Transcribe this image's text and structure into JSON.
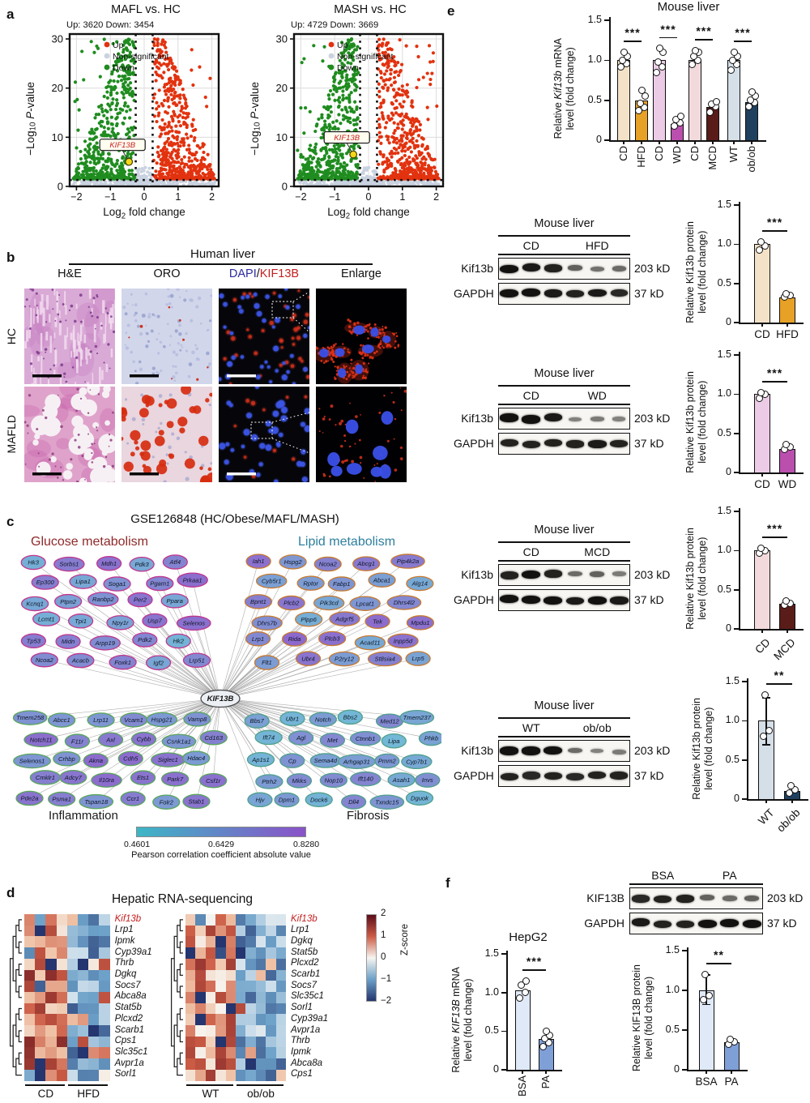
{
  "panel_a": {
    "label": "a",
    "legend": [
      {
        "label": "Up",
        "color": "#e2320f"
      },
      {
        "label": "Non-significant",
        "color": "#c9d2e0"
      },
      {
        "label": "Down",
        "color": "#1f8c1f"
      }
    ],
    "gene_label": "KIF13B",
    "gene_label_color": "#c41f1f",
    "marker_color": "#f4d818",
    "ylabel": [
      [
        {
          "t": "−Log"
        },
        {
          "t": "10",
          "sub": true
        },
        {
          "t": " "
        },
        {
          "t": "P",
          "i": true
        },
        {
          "t": "-value"
        }
      ]
    ],
    "xlabel": [
      [
        {
          "t": "Log"
        },
        {
          "t": "2",
          "sub": true
        },
        {
          "t": " fold change"
        }
      ]
    ],
    "xticks": [
      "−2",
      "−1",
      "0",
      "1",
      "2"
    ],
    "yticks": [
      "0",
      "10",
      "20",
      "30"
    ]
  },
  "panel_b": {
    "label": "b",
    "header": "Human liver",
    "columns": [
      "H&E",
      "ORO",
      "DAPI/KIF13B",
      "Enlarge"
    ],
    "dapi_parts": {
      "dapi": "DAPI",
      "slash": "/",
      "kif13b": "KIF13B",
      "dapi_color": "#2b2b9e",
      "kif13b_color": "#c41f1f"
    },
    "rows": [
      "HC",
      "MAFLD"
    ]
  },
  "panel_c": {
    "label": "c",
    "title": "GSE126848 (HC/Obese/MAFL/MASH)",
    "hub": "KIF13B",
    "quadrants": [
      {
        "name": "Glucose metabolism",
        "color": "#8f2a2a",
        "border": "#c0368e",
        "genes": [
          "Hk3",
          "Sorbs1",
          "Mdh1",
          "Pdk3",
          "Atf4",
          "Ep300",
          "Lipa1",
          "Soga1",
          "Pgam1",
          "Prkaa1",
          "Kcnq1",
          "Ptpn2",
          "Ranbp2",
          "Per2",
          "Ppara",
          "Lcmt1",
          "Tpi1",
          "Npy1r",
          "Usp7",
          "Selenos",
          "Tp53",
          "Midn",
          "Arpp19",
          "Pdk2",
          "Hk2",
          "Ncoa2",
          "Acacb",
          "Foxk1",
          "Igf2",
          "Lrp51"
        ]
      },
      {
        "name": "Lipid metabolism",
        "color": "#2e7f9e",
        "border": "#c87a2e",
        "genes": [
          "Iah1",
          "Hspg2",
          "Ncoa2",
          "Abcg1",
          "Pip4k2a",
          "Cyb5r1",
          "Rptor",
          "Fabp1",
          "Abca1",
          "Alg14",
          "Bpnt1",
          "Plcb2",
          "Pik3cd",
          "Lpcat1",
          "Dhrs4l2",
          "Dhrs7b",
          "Plpp6",
          "Adgrf5",
          "Tek",
          "Mpdu1",
          "Lrp1",
          "Rida",
          "Plcb3",
          "Acad11",
          "Inpp5d",
          "Flt1",
          "Ubr4",
          "P2ry12",
          "St8sia4",
          "Lrp5"
        ]
      },
      {
        "name": "Inflammation",
        "color": "#1a1a1a",
        "border": "#59a659",
        "genes": [
          "Tmem258",
          "Abcc1",
          "Lrp11",
          "Vcam1",
          "Hspg21",
          "Vamp8",
          "Notch11",
          "F11r",
          "Axl",
          "Cybb",
          "Csnk1a1",
          "Cd163",
          "Selenos1",
          "Crhbp",
          "Akna",
          "Cdh5",
          "Siglec1",
          "Hdac4",
          "Cmklr1",
          "Adcy7",
          "Il10ra",
          "Ets1",
          "Park7",
          "Csf1r",
          "Pde2a",
          "Psma1",
          "Tspan18",
          "Ccr1",
          "Folr2",
          "Stab1"
        ]
      },
      {
        "name": "Fibrosis",
        "color": "#1a1a1a",
        "border": "#4fa08a",
        "genes": [
          "Bbs7",
          "Ubr1",
          "Notch",
          "Bbs2",
          "Med12",
          "Tmem237",
          "Ift74",
          "Agl",
          "Met",
          "Ctnnb1",
          "Lipa",
          "Phkb",
          "Ap1s1",
          "Cp",
          "Sema4d",
          "Arhgap31",
          "Pmm2",
          "Cyp7b1",
          "Ptrh2",
          "Mkks",
          "Nop10",
          "Ift140",
          "Asah1",
          "Invs",
          "Hjv",
          "Dpm1",
          "Dock6",
          "Dll4",
          "Txndc15",
          "Dguok"
        ]
      }
    ],
    "colorbar": {
      "min": "0.4601",
      "mid": "0.6429",
      "max": "0.8280",
      "caption": "Pearson correlation coefficient absolute value",
      "start": "#3db6c6",
      "end": "#8a52c8"
    }
  },
  "panel_d": {
    "label": "d",
    "title": "Hepatic RNA-sequencing",
    "highlight_gene": "Kif13b",
    "highlight_color": "#c41f1f",
    "left": {
      "genes": [
        "Kif13b",
        "Lrp1",
        "Ipmk",
        "Cyp39a1",
        "Thrb",
        "Dgkq",
        "Socs7",
        "Abca8a",
        "Stat5b",
        "Plcxd2",
        "Scarb1",
        "Cps1",
        "Slc35c1",
        "Avpr1a",
        "Sorl1"
      ],
      "groups": [
        {
          "label": "CD",
          "cols": 4
        },
        {
          "label": "HFD",
          "cols": 4
        }
      ],
      "trend": "CD columns high z-score (red), HFD columns low (blue)"
    },
    "right": {
      "genes": [
        "Kif13b",
        "Lrp1",
        "Dgkq",
        "Stat5b",
        "Plcxd2",
        "Scarb1",
        "Socs7",
        "Slc35c1",
        "Sorl1",
        "Cyp39a1",
        "Avpr1a",
        "Thrb",
        "Ipmk",
        "Abca8a",
        "Cps1"
      ],
      "groups": [
        {
          "label": "WT",
          "cols": 5
        },
        {
          "label": "ob/ob",
          "cols": 5
        }
      ],
      "trend": "WT columns high z-score (red), ob/ob columns low (blue)"
    },
    "zscore": {
      "label": "Z-score",
      "ticks": [
        "2",
        "1",
        "0",
        "−1",
        "−2"
      ]
    }
  },
  "panel_e": {
    "label": "e",
    "blots": [
      {
        "header": "Mouse liver",
        "groups": [
          "CD",
          "HFD"
        ],
        "rows": [
          {
            "label": "Kif13b",
            "kd": "203 kD",
            "lanes": [
              1,
              0.95,
              0.9,
              0.5,
              0.4,
              0.45
            ]
          },
          {
            "label": "GAPDH",
            "kd": "37 kD",
            "lanes": [
              1,
              1,
              0.95,
              0.9,
              0.95,
              0.85
            ]
          }
        ]
      },
      {
        "header": "Mouse liver",
        "groups": [
          "CD",
          "WD"
        ],
        "rows": [
          {
            "label": "Kif13b",
            "kd": "203 kD",
            "lanes": [
              1,
              1,
              0.95,
              0.3,
              0.35,
              0.3
            ]
          },
          {
            "label": "GAPDH",
            "kd": "37 kD",
            "lanes": [
              0.9,
              0.9,
              0.9,
              0.9,
              0.95,
              0.9
            ]
          }
        ]
      },
      {
        "header": "Mouse liver",
        "groups": [
          "CD",
          "MCD"
        ],
        "rows": [
          {
            "label": "Kif13b",
            "kd": "203 kD",
            "lanes": [
              0.9,
              1,
              0.9,
              0.45,
              0.5,
              0.35
            ]
          },
          {
            "label": "GAPDH",
            "kd": "37 kD",
            "lanes": [
              1,
              1,
              1,
              0.95,
              1,
              0.95
            ]
          }
        ]
      },
      {
        "header": "Mouse liver",
        "groups": [
          "WT",
          "ob/ob"
        ],
        "rows": [
          {
            "label": "Kif13b",
            "kd": "203 kD",
            "lanes": [
              1,
              1,
              1,
              0.45,
              0.3,
              0.35
            ]
          },
          {
            "label": "GAPDH",
            "kd": "37 kD",
            "lanes": [
              0.9,
              0.85,
              0.9,
              0.85,
              0.9,
              0.9
            ]
          }
        ]
      }
    ]
  },
  "panel_f": {
    "label": "f",
    "blot": {
      "groups": [
        "BSA",
        "PA"
      ],
      "rows": [
        {
          "label": "KIF13B",
          "kd": "203 kD",
          "lanes": [
            0.85,
            0.9,
            0.9,
            0.5,
            0.45,
            0.5
          ]
        },
        {
          "label": "GAPDH",
          "kd": "37 kD",
          "lanes": [
            0.95,
            0.9,
            0.9,
            1,
            1,
            1
          ]
        }
      ]
    }
  },
  "chart_data": {
    "volcano": [
      {
        "type": "scatter",
        "title": "MAFL vs. HC",
        "subtitle": "Up: 3620 Down: 3454",
        "up_count": 3620,
        "down_count": 3454,
        "xlim": [
          -2.2,
          2.2
        ],
        "ylim": [
          0,
          31
        ],
        "highlight": {
          "gene": "KIF13B",
          "x": -0.45,
          "y": 5
        }
      },
      {
        "type": "scatter",
        "title": "MASH vs. HC",
        "subtitle": "Up: 4729 Down: 3669",
        "up_count": 4729,
        "down_count": 3669,
        "xlim": [
          -2.2,
          2.2
        ],
        "ylim": [
          0,
          31
        ],
        "highlight": {
          "gene": "KIF13B",
          "x": -0.45,
          "y": 6.5
        }
      }
    ],
    "e_mrna": {
      "type": "bar",
      "title": "Mouse liver",
      "ylim": [
        0,
        1.5
      ],
      "yticks": [
        "0",
        "0.5",
        "1.0",
        "1.5"
      ],
      "ylabel": [
        [
          {
            "t": "Relative "
          },
          {
            "t": "Kif13b",
            "i": true
          },
          {
            "t": " mRNA"
          }
        ],
        [
          {
            "t": "level (fold change)"
          }
        ]
      ],
      "bars": [
        {
          "label": "CD",
          "value": 1.0,
          "color": "#f3e2c7",
          "points": [
            0.92,
            0.96,
            1.0,
            1.05,
            1.1
          ]
        },
        {
          "label": "HFD",
          "value": 0.5,
          "color": "#e6a126",
          "points": [
            0.37,
            0.41,
            0.46,
            0.55,
            0.62
          ]
        },
        {
          "label": "CD",
          "value": 1.0,
          "color": "#eccbe6",
          "points": [
            0.85,
            0.92,
            0.98,
            1.1,
            1.15
          ]
        },
        {
          "label": "WD",
          "value": 0.2,
          "color": "#bb4fae",
          "points": [
            0.18,
            0.22,
            0.26,
            0.3
          ]
        },
        {
          "label": "CD",
          "value": 1.0,
          "color": "#f2dadc",
          "points": [
            0.95,
            1.0,
            1.05,
            1.1,
            1.12
          ]
        },
        {
          "label": "MCD",
          "value": 0.42,
          "color": "#5a1c19",
          "points": [
            0.35,
            0.42,
            0.45,
            0.48
          ]
        },
        {
          "label": "WT",
          "value": 1.0,
          "color": "#d4dfe8",
          "points": [
            0.88,
            0.95,
            1.0,
            1.05,
            1.1
          ]
        },
        {
          "label": "ob/ob",
          "value": 0.48,
          "color": "#20405f",
          "points": [
            0.42,
            0.47,
            0.5,
            0.55,
            0.6
          ]
        }
      ],
      "sig": [
        {
          "pair": [
            0,
            1
          ],
          "stars": "***"
        },
        {
          "pair": [
            2,
            3
          ],
          "stars": "***"
        },
        {
          "pair": [
            4,
            5
          ],
          "stars": "***"
        },
        {
          "pair": [
            6,
            7
          ],
          "stars": "***"
        }
      ]
    },
    "e_wb1": {
      "type": "bar",
      "ylim": [
        0,
        1.5
      ],
      "yticks": [
        "0",
        "0.5",
        "1.0",
        "1.5"
      ],
      "ylabel": [
        [
          {
            "t": "Relative Kif13b protein"
          }
        ],
        [
          {
            "t": "level (fold change)"
          }
        ]
      ],
      "bars": [
        {
          "label": "CD",
          "value": 1.0,
          "color": "#f3e2c7",
          "points": [
            0.93,
            0.98,
            1.03
          ]
        },
        {
          "label": "HFD",
          "value": 0.32,
          "color": "#e6a126",
          "points": [
            0.33,
            0.35,
            0.37
          ]
        }
      ],
      "sig": [
        {
          "pair": [
            0,
            1
          ],
          "stars": "***"
        }
      ]
    },
    "e_wb2": {
      "type": "bar",
      "ylim": [
        0,
        1.5
      ],
      "yticks": [
        "0",
        "0.5",
        "1.0",
        "1.5"
      ],
      "ylabel": [
        [
          {
            "t": "Relative Kif13b protein"
          }
        ],
        [
          {
            "t": "level (fold change)"
          }
        ]
      ],
      "bars": [
        {
          "label": "CD",
          "value": 1.0,
          "color": "#eccbe6",
          "points": [
            0.95,
            1.0,
            1.02
          ]
        },
        {
          "label": "WD",
          "value": 0.3,
          "color": "#bb4fae",
          "points": [
            0.3,
            0.33,
            0.36
          ]
        }
      ],
      "sig": [
        {
          "pair": [
            0,
            1
          ],
          "stars": "***"
        }
      ]
    },
    "e_wb3": {
      "type": "bar",
      "ylim": [
        0,
        1.5
      ],
      "yticks": [
        "0",
        "0.5",
        "1.0",
        "1.5"
      ],
      "ylabel": [
        [
          {
            "t": "Relative Kif13b protein"
          }
        ],
        [
          {
            "t": "level (fold change)"
          }
        ]
      ],
      "bars": [
        {
          "label": "CD",
          "value": 1.0,
          "color": "#f2dadc",
          "points": [
            0.97,
            1.0,
            1.03
          ]
        },
        {
          "label": "MCD",
          "value": 0.32,
          "color": "#5a1c19",
          "points": [
            0.31,
            0.33,
            0.36
          ]
        }
      ],
      "sig": [
        {
          "pair": [
            0,
            1
          ],
          "stars": "***"
        }
      ]
    },
    "e_wb4": {
      "type": "bar",
      "ylim": [
        0,
        1.5
      ],
      "yticks": [
        "0",
        "0.5",
        "1.0",
        "1.5"
      ],
      "ylabel": [
        [
          {
            "t": "Relative Kif13b protein"
          }
        ],
        [
          {
            "t": "level (fold change)"
          }
        ]
      ],
      "bars": [
        {
          "label": "WT",
          "value": 1.0,
          "color": "#d4dfe8",
          "err": [
            0.7,
            1.3
          ],
          "points": [
            0.8,
            0.87,
            1.33
          ]
        },
        {
          "label": "ob/ob",
          "value": 0.1,
          "color": "#20405f",
          "points": [
            0.08,
            0.12,
            0.17
          ]
        }
      ],
      "sig": [
        {
          "pair": [
            0,
            1
          ],
          "stars": "**"
        }
      ]
    },
    "f_mrna": {
      "type": "bar",
      "title": "HepG2",
      "ylim": [
        0,
        1.5
      ],
      "yticks": [
        "0",
        "0.5",
        "1.0",
        "1.5"
      ],
      "ylabel": [
        [
          {
            "t": "Relative "
          },
          {
            "t": "KIF13B",
            "i": true
          },
          {
            "t": " mRNA"
          }
        ],
        [
          {
            "t": "level (fold change)"
          }
        ]
      ],
      "bars": [
        {
          "label": "BSA",
          "value": 1.03,
          "color": "#dfe9f7",
          "points": [
            0.93,
            1.0,
            1.1,
            1.15
          ]
        },
        {
          "label": "PA",
          "value": 0.4,
          "color": "#7f9fd7",
          "points": [
            0.3,
            0.35,
            0.4,
            0.45,
            0.5
          ]
        }
      ],
      "sig": [
        {
          "pair": [
            0,
            1
          ],
          "stars": "***"
        }
      ]
    },
    "f_prot": {
      "type": "bar",
      "ylim": [
        0,
        1.5
      ],
      "yticks": [
        "0",
        "0.5",
        "1.0",
        "1.5"
      ],
      "ylabel": [
        [
          {
            "t": "Relative KIF13B protein"
          }
        ],
        [
          {
            "t": "level (fold change)"
          }
        ]
      ],
      "bars": [
        {
          "label": "BSA",
          "value": 1.0,
          "color": "#dfe9f7",
          "err": [
            0.83,
            1.2
          ],
          "points": [
            0.88,
            0.93,
            1.2
          ]
        },
        {
          "label": "PA",
          "value": 0.35,
          "color": "#7f9fd7",
          "points": [
            0.32,
            0.35,
            0.38
          ]
        }
      ],
      "sig": [
        {
          "pair": [
            0,
            1
          ],
          "stars": "**"
        }
      ]
    },
    "heatmap_zscore_range": [
      -2,
      2
    ]
  }
}
